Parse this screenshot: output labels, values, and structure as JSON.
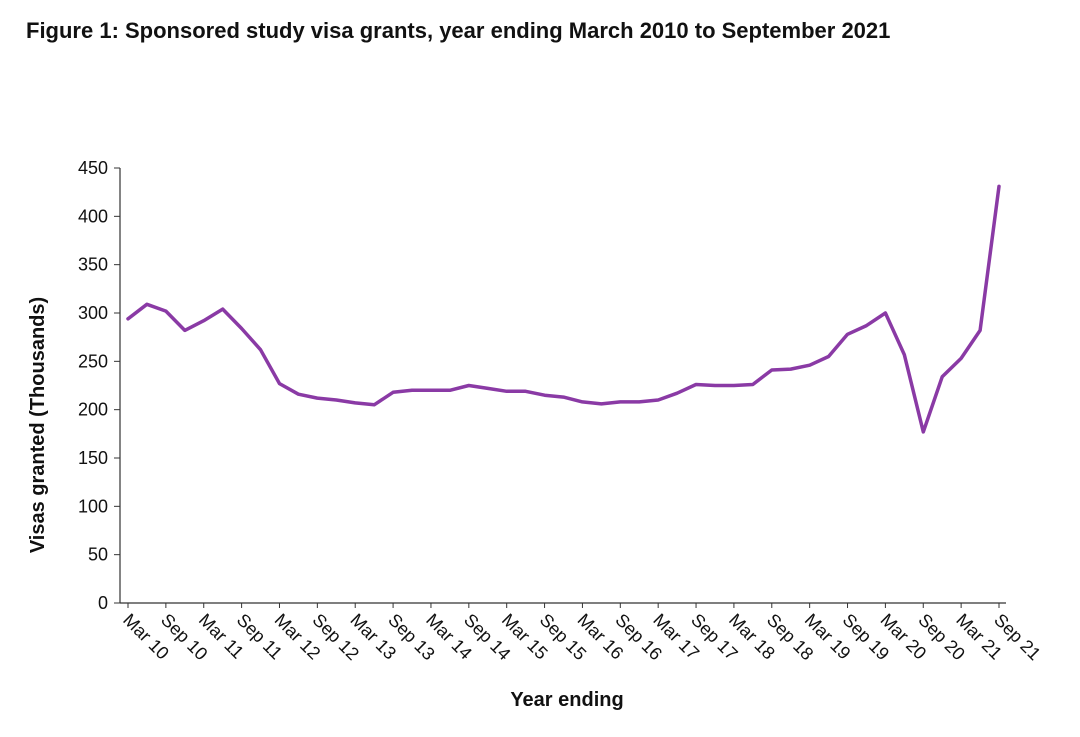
{
  "chart_data": {
    "type": "line",
    "title": "Figure 1: Sponsored study visa grants, year ending March 2010 to September 2021",
    "x_label": "Year ending",
    "y_label": "Visas granted (Thousands)",
    "categories": [
      "Mar 10",
      null,
      "Sep 10",
      null,
      "Mar 11",
      null,
      "Sep 11",
      null,
      "Mar 12",
      null,
      "Sep 12",
      null,
      "Mar 13",
      null,
      "Sep 13",
      null,
      "Mar 14",
      null,
      "Sep 14",
      null,
      "Mar 15",
      null,
      "Sep 15",
      null,
      "Mar 16",
      null,
      "Sep 16",
      null,
      "Mar 17",
      null,
      "Sep 17",
      null,
      "Mar 18",
      null,
      "Sep 18",
      null,
      "Mar 19",
      null,
      "Sep 19",
      null,
      "Mar 20",
      null,
      "Sep 20",
      null,
      "Mar 21",
      null,
      "Sep 21"
    ],
    "values": [
      294,
      309,
      302,
      282,
      292,
      304,
      284,
      262,
      227,
      216,
      212,
      210,
      207,
      205,
      218,
      220,
      220,
      220,
      225,
      222,
      219,
      219,
      215,
      213,
      208,
      206,
      208,
      208,
      210,
      217,
      226,
      225,
      225,
      226,
      241,
      242,
      246,
      255,
      278,
      287,
      300,
      257,
      177,
      234,
      253,
      282,
      431
    ],
    "color": "#8a3aa5",
    "ylim": [
      0,
      450
    ],
    "yticks": [
      0,
      50,
      100,
      150,
      200,
      250,
      300,
      350,
      400,
      450
    ]
  }
}
